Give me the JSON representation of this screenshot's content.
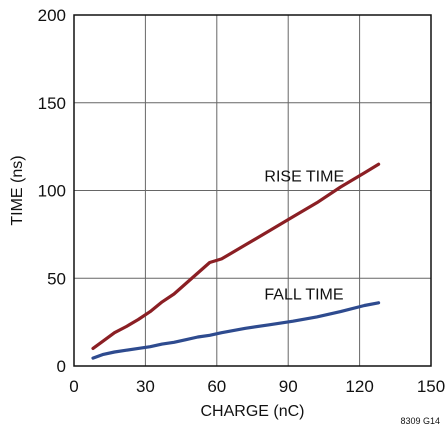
{
  "chart_data": {
    "type": "line",
    "title": "",
    "xlabel": "CHARGE (nC)",
    "ylabel": "TIME (ns)",
    "xlim": [
      0,
      150
    ],
    "ylim": [
      0,
      200
    ],
    "x_ticks": [
      0,
      30,
      60,
      90,
      120,
      150
    ],
    "y_ticks": [
      0,
      50,
      100,
      150,
      200
    ],
    "grid": true,
    "series": [
      {
        "name": "RISE TIME",
        "color": "#8b1f24",
        "x": [
          8,
          12,
          17,
          22,
          27,
          32,
          37,
          42,
          47,
          52,
          57,
          62,
          72,
          82,
          92,
          102,
          112,
          122,
          128
        ],
        "y": [
          10,
          14,
          19,
          22.5,
          26.5,
          31,
          36.5,
          41,
          47,
          53,
          59,
          61,
          69,
          77,
          85,
          93,
          102,
          110,
          115
        ]
      },
      {
        "name": "FALL TIME",
        "color": "#2e4b8f",
        "x": [
          8,
          12,
          17,
          22,
          27,
          32,
          37,
          42,
          47,
          52,
          57,
          62,
          72,
          82,
          92,
          102,
          112,
          122,
          128
        ],
        "y": [
          4.5,
          6.5,
          8,
          9,
          10,
          11,
          12.5,
          13.5,
          15,
          16.5,
          17.5,
          19,
          21.5,
          23.5,
          25.5,
          28,
          31,
          34.5,
          36
        ]
      }
    ],
    "annotations": [
      {
        "text": "RISE TIME",
        "x": 80,
        "y": 105
      },
      {
        "text": "FALL TIME",
        "x": 80,
        "y": 38
      }
    ],
    "figure_id": "8309 G14"
  }
}
